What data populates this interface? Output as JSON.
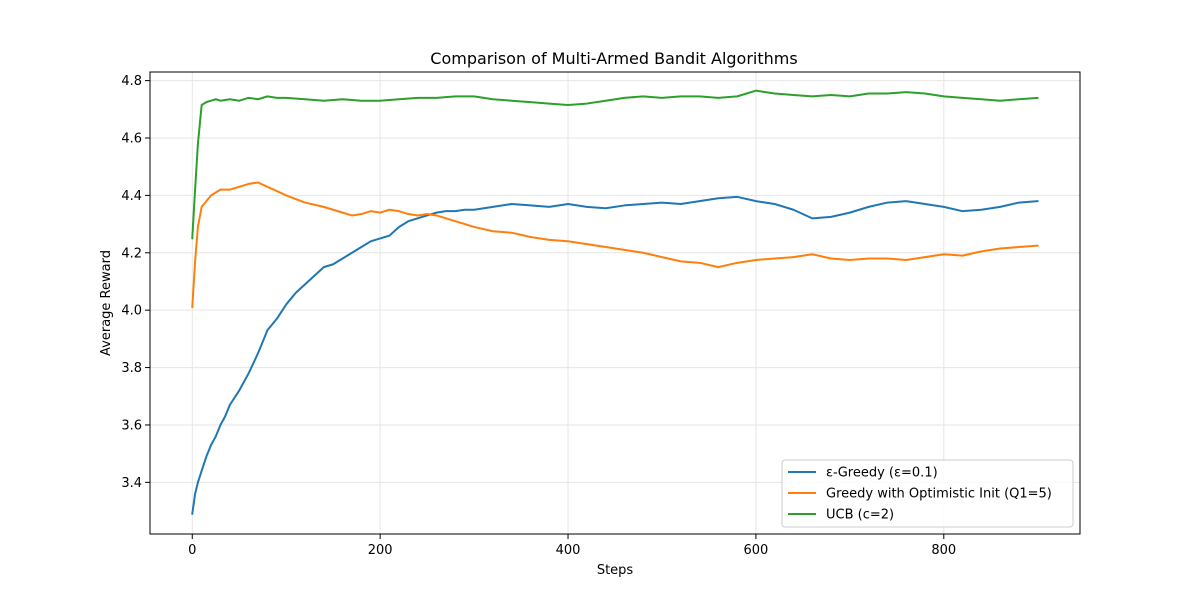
{
  "chart_data": {
    "type": "line",
    "title": "Comparison of Multi-Armed Bandit Algorithms",
    "xlabel": "Steps",
    "ylabel": "Average Reward",
    "xlim": [
      -45,
      945
    ],
    "ylim": [
      3.22,
      4.83
    ],
    "xticks": [
      0,
      200,
      400,
      600,
      800
    ],
    "yticks": [
      3.4,
      3.6,
      3.8,
      4.0,
      4.2,
      4.4,
      4.6,
      4.8
    ],
    "xtick_labels": [
      "0",
      "200",
      "400",
      "600",
      "800"
    ],
    "ytick_labels": [
      "3.4",
      "3.6",
      "3.8",
      "4.0",
      "4.2",
      "4.4",
      "4.6",
      "4.8"
    ],
    "grid": true,
    "legend_position": "lower-right",
    "series": [
      {
        "name": "ε-Greedy (ε=0.1)",
        "color": "#1f77b4",
        "x": [
          0,
          3,
          6,
          10,
          15,
          20,
          25,
          30,
          35,
          40,
          50,
          60,
          70,
          80,
          90,
          100,
          110,
          120,
          130,
          140,
          150,
          160,
          170,
          180,
          190,
          200,
          210,
          220,
          230,
          240,
          250,
          260,
          270,
          280,
          290,
          300,
          320,
          340,
          360,
          380,
          400,
          420,
          440,
          460,
          480,
          500,
          520,
          540,
          560,
          580,
          600,
          620,
          640,
          660,
          680,
          700,
          720,
          740,
          760,
          780,
          800,
          820,
          840,
          860,
          880,
          900
        ],
        "y": [
          3.29,
          3.36,
          3.4,
          3.44,
          3.49,
          3.53,
          3.56,
          3.6,
          3.63,
          3.67,
          3.72,
          3.78,
          3.85,
          3.93,
          3.97,
          4.02,
          4.06,
          4.09,
          4.12,
          4.15,
          4.16,
          4.18,
          4.2,
          4.22,
          4.24,
          4.25,
          4.26,
          4.29,
          4.31,
          4.32,
          4.33,
          4.34,
          4.345,
          4.345,
          4.35,
          4.35,
          4.36,
          4.37,
          4.365,
          4.36,
          4.37,
          4.36,
          4.355,
          4.365,
          4.37,
          4.375,
          4.37,
          4.38,
          4.39,
          4.395,
          4.38,
          4.37,
          4.35,
          4.32,
          4.325,
          4.34,
          4.36,
          4.375,
          4.38,
          4.37,
          4.36,
          4.345,
          4.35,
          4.36,
          4.375,
          4.38
        ]
      },
      {
        "name": "Greedy with Optimistic Init (Q1=5)",
        "color": "#ff7f0e",
        "x": [
          0,
          3,
          6,
          10,
          15,
          20,
          30,
          40,
          50,
          60,
          70,
          80,
          90,
          100,
          120,
          140,
          160,
          170,
          180,
          190,
          200,
          210,
          220,
          230,
          240,
          250,
          260,
          280,
          300,
          320,
          340,
          360,
          380,
          400,
          420,
          440,
          460,
          480,
          500,
          520,
          540,
          560,
          580,
          600,
          620,
          640,
          660,
          680,
          700,
          720,
          740,
          760,
          780,
          800,
          820,
          840,
          860,
          880,
          900
        ],
        "y": [
          4.01,
          4.17,
          4.29,
          4.36,
          4.38,
          4.4,
          4.42,
          4.42,
          4.43,
          4.44,
          4.445,
          4.43,
          4.415,
          4.4,
          4.375,
          4.36,
          4.34,
          4.33,
          4.335,
          4.345,
          4.34,
          4.35,
          4.345,
          4.335,
          4.33,
          4.335,
          4.33,
          4.31,
          4.29,
          4.275,
          4.27,
          4.255,
          4.245,
          4.24,
          4.23,
          4.22,
          4.21,
          4.2,
          4.185,
          4.17,
          4.165,
          4.15,
          4.165,
          4.175,
          4.18,
          4.185,
          4.195,
          4.18,
          4.175,
          4.18,
          4.18,
          4.175,
          4.185,
          4.195,
          4.19,
          4.205,
          4.215,
          4.22,
          4.225
        ]
      },
      {
        "name": "UCB (c=2)",
        "color": "#2ca02c",
        "x": [
          0,
          3,
          6,
          10,
          15,
          20,
          25,
          30,
          40,
          50,
          60,
          70,
          80,
          90,
          100,
          120,
          140,
          160,
          180,
          200,
          220,
          240,
          260,
          280,
          300,
          320,
          340,
          360,
          380,
          400,
          420,
          440,
          460,
          480,
          500,
          520,
          540,
          560,
          580,
          600,
          620,
          640,
          660,
          680,
          700,
          720,
          740,
          760,
          780,
          800,
          820,
          840,
          860,
          880,
          900
        ],
        "y": [
          4.25,
          4.42,
          4.58,
          4.715,
          4.725,
          4.73,
          4.735,
          4.73,
          4.735,
          4.73,
          4.74,
          4.735,
          4.745,
          4.74,
          4.74,
          4.735,
          4.73,
          4.735,
          4.73,
          4.73,
          4.735,
          4.74,
          4.74,
          4.745,
          4.745,
          4.735,
          4.73,
          4.725,
          4.72,
          4.715,
          4.72,
          4.73,
          4.74,
          4.745,
          4.74,
          4.745,
          4.745,
          4.74,
          4.745,
          4.765,
          4.755,
          4.75,
          4.745,
          4.75,
          4.745,
          4.755,
          4.755,
          4.76,
          4.755,
          4.745,
          4.74,
          4.735,
          4.73,
          4.735,
          4.74
        ]
      }
    ]
  }
}
